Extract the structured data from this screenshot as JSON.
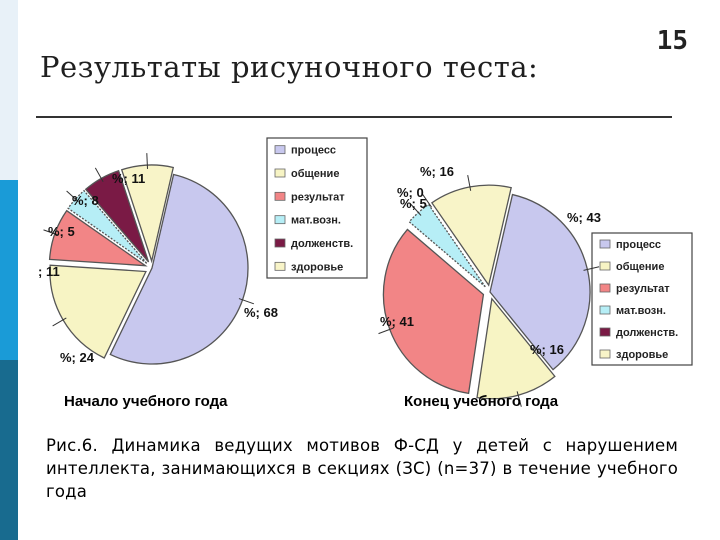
{
  "slide": {
    "title": "Результаты рисуночного теста:",
    "number": "15",
    "figure_caption_prefix": "Рис.6.",
    "figure_caption_text": " Динамика ведущих мотивов Ф-СД у детей с нарушением интеллекта, занимающихся в секциях (ЗС) (n=37) в течение учебного года"
  },
  "colors": {
    "процесс": "#c8c8ee",
    "общение": "#f7f4c4",
    "результат": "#f28586",
    "мат.возн.": "#b6eef6",
    "долженств.": "#7a1a45",
    "здоровье": "#f8f4c8"
  },
  "chart_data": [
    {
      "type": "pie",
      "caption": "Начало учебного года",
      "legend": [
        "процесс",
        "общение",
        "результат",
        "мат.возн.",
        "долженств.",
        "здоровье"
      ],
      "series": [
        {
          "category": "процесс",
          "label": "%; 68",
          "value": 68
        },
        {
          "category": "общение",
          "label": "%; 24",
          "value": 24
        },
        {
          "category": "результат",
          "label": "; 11",
          "value": 11
        },
        {
          "category": "мат.возн.",
          "label": "%; 5",
          "value": 5
        },
        {
          "category": "долженств.",
          "label": "%; 8",
          "value": 8
        },
        {
          "category": "здоровье",
          "label": "%; 11",
          "value": 11
        }
      ]
    },
    {
      "type": "pie",
      "caption": "Конец учебного года",
      "legend": [
        "процесс",
        "общение",
        "результат",
        "мат.возн.",
        "долженств.",
        "здоровье"
      ],
      "series": [
        {
          "category": "процесс",
          "label": "%; 43",
          "value": 43
        },
        {
          "category": "общение",
          "label": "%; 16",
          "value": 16
        },
        {
          "category": "результат",
          "label": "%; 41",
          "value": 41
        },
        {
          "category": "мат.возн.",
          "label": "%; 5",
          "value": 5
        },
        {
          "category": "долженств.",
          "label": "%; 0",
          "value": 0
        },
        {
          "category": "здоровье",
          "label": "%; 16",
          "value": 16
        }
      ]
    }
  ]
}
